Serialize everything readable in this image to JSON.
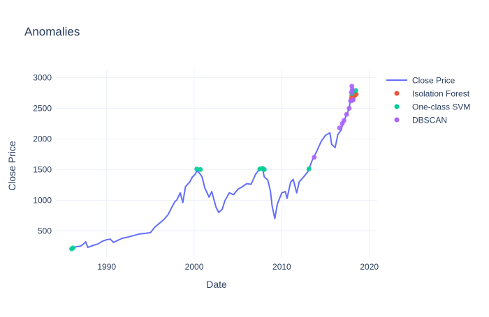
{
  "chart_data": {
    "type": "line",
    "title": "Anomalies",
    "xlabel": "Date",
    "ylabel": "Close Price",
    "xlim": [
      1984.2,
      2020.9
    ],
    "ylim": [
      60,
      3130
    ],
    "x_ticks": [
      1990,
      2000,
      2010,
      2020
    ],
    "y_ticks": [
      500,
      1000,
      1500,
      2000,
      2500,
      3000
    ],
    "grid": true,
    "legend_position": "right",
    "series": [
      {
        "name": "Close Price",
        "mode": "line",
        "color": "#636efa",
        "points": [
          [
            1986.0,
            210
          ],
          [
            1986.5,
            240
          ],
          [
            1987.0,
            250
          ],
          [
            1987.3,
            280
          ],
          [
            1987.6,
            320
          ],
          [
            1987.85,
            230
          ],
          [
            1988.5,
            265
          ],
          [
            1989.0,
            285
          ],
          [
            1989.5,
            330
          ],
          [
            1990.0,
            355
          ],
          [
            1990.4,
            365
          ],
          [
            1990.8,
            310
          ],
          [
            1991.2,
            340
          ],
          [
            1991.8,
            380
          ],
          [
            1992.5,
            400
          ],
          [
            1993.0,
            420
          ],
          [
            1993.8,
            450
          ],
          [
            1994.5,
            460
          ],
          [
            1995.0,
            470
          ],
          [
            1995.5,
            560
          ],
          [
            1996.0,
            620
          ],
          [
            1996.5,
            680
          ],
          [
            1997.0,
            760
          ],
          [
            1997.5,
            900
          ],
          [
            1997.8,
            980
          ],
          [
            1998.0,
            1000
          ],
          [
            1998.4,
            1120
          ],
          [
            1998.7,
            960
          ],
          [
            1999.0,
            1220
          ],
          [
            1999.5,
            1300
          ],
          [
            1999.8,
            1380
          ],
          [
            2000.1,
            1420
          ],
          [
            2000.3,
            1480
          ],
          [
            2000.6,
            1440
          ],
          [
            2000.9,
            1380
          ],
          [
            2001.2,
            1200
          ],
          [
            2001.7,
            1050
          ],
          [
            2002.0,
            1140
          ],
          [
            2002.5,
            880
          ],
          [
            2002.8,
            800
          ],
          [
            2003.2,
            850
          ],
          [
            2003.5,
            990
          ],
          [
            2004.0,
            1120
          ],
          [
            2004.5,
            1090
          ],
          [
            2005.0,
            1180
          ],
          [
            2005.5,
            1220
          ],
          [
            2006.0,
            1270
          ],
          [
            2006.5,
            1260
          ],
          [
            2007.0,
            1420
          ],
          [
            2007.4,
            1500
          ],
          [
            2007.8,
            1520
          ],
          [
            2008.0,
            1380
          ],
          [
            2008.4,
            1330
          ],
          [
            2008.7,
            1150
          ],
          [
            2008.9,
            900
          ],
          [
            2009.2,
            700
          ],
          [
            2009.5,
            940
          ],
          [
            2010.0,
            1120
          ],
          [
            2010.4,
            1140
          ],
          [
            2010.6,
            1030
          ],
          [
            2011.0,
            1290
          ],
          [
            2011.3,
            1340
          ],
          [
            2011.7,
            1120
          ],
          [
            2012.0,
            1300
          ],
          [
            2012.5,
            1380
          ],
          [
            2013.0,
            1470
          ],
          [
            2013.5,
            1660
          ],
          [
            2014.0,
            1800
          ],
          [
            2014.5,
            1960
          ],
          [
            2015.0,
            2060
          ],
          [
            2015.5,
            2100
          ],
          [
            2015.7,
            1910
          ],
          [
            2016.1,
            1860
          ],
          [
            2016.4,
            2070
          ],
          [
            2016.8,
            2150
          ],
          [
            2017.0,
            2270
          ],
          [
            2017.5,
            2420
          ],
          [
            2017.8,
            2580
          ],
          [
            2018.0,
            2850
          ],
          [
            2018.1,
            2600
          ],
          [
            2018.3,
            2650
          ],
          [
            2018.5,
            2750
          ]
        ]
      },
      {
        "name": "Isolation Forest",
        "mode": "markers",
        "color": "#ef553b",
        "points": [
          [
            2017.95,
            2660
          ],
          [
            2018.0,
            2700
          ],
          [
            2018.05,
            2650
          ],
          [
            2018.1,
            2720
          ],
          [
            2018.2,
            2690
          ],
          [
            2018.3,
            2710
          ],
          [
            2018.4,
            2720
          ],
          [
            2018.5,
            2730
          ]
        ]
      },
      {
        "name": "One-class SVM",
        "mode": "markers",
        "color": "#00cc96",
        "points": [
          [
            1986.0,
            205
          ],
          [
            1986.15,
            220
          ],
          [
            2000.3,
            1510
          ],
          [
            2000.7,
            1500
          ],
          [
            2007.5,
            1510
          ],
          [
            2007.8,
            1520
          ],
          [
            2008.0,
            1500
          ],
          [
            2013.1,
            1510
          ],
          [
            2018.0,
            2740
          ],
          [
            2018.2,
            2780
          ],
          [
            2018.45,
            2790
          ]
        ]
      },
      {
        "name": "DBSCAN",
        "mode": "markers",
        "color": "#ab63fa",
        "points": [
          [
            2013.7,
            1700
          ],
          [
            2016.6,
            2180
          ],
          [
            2016.9,
            2250
          ],
          [
            2017.1,
            2300
          ],
          [
            2017.4,
            2400
          ],
          [
            2017.7,
            2500
          ],
          [
            2017.85,
            2620
          ],
          [
            2017.95,
            2760
          ],
          [
            2018.0,
            2860
          ],
          [
            2018.05,
            2800
          ],
          [
            2018.15,
            2640
          ]
        ]
      }
    ]
  }
}
